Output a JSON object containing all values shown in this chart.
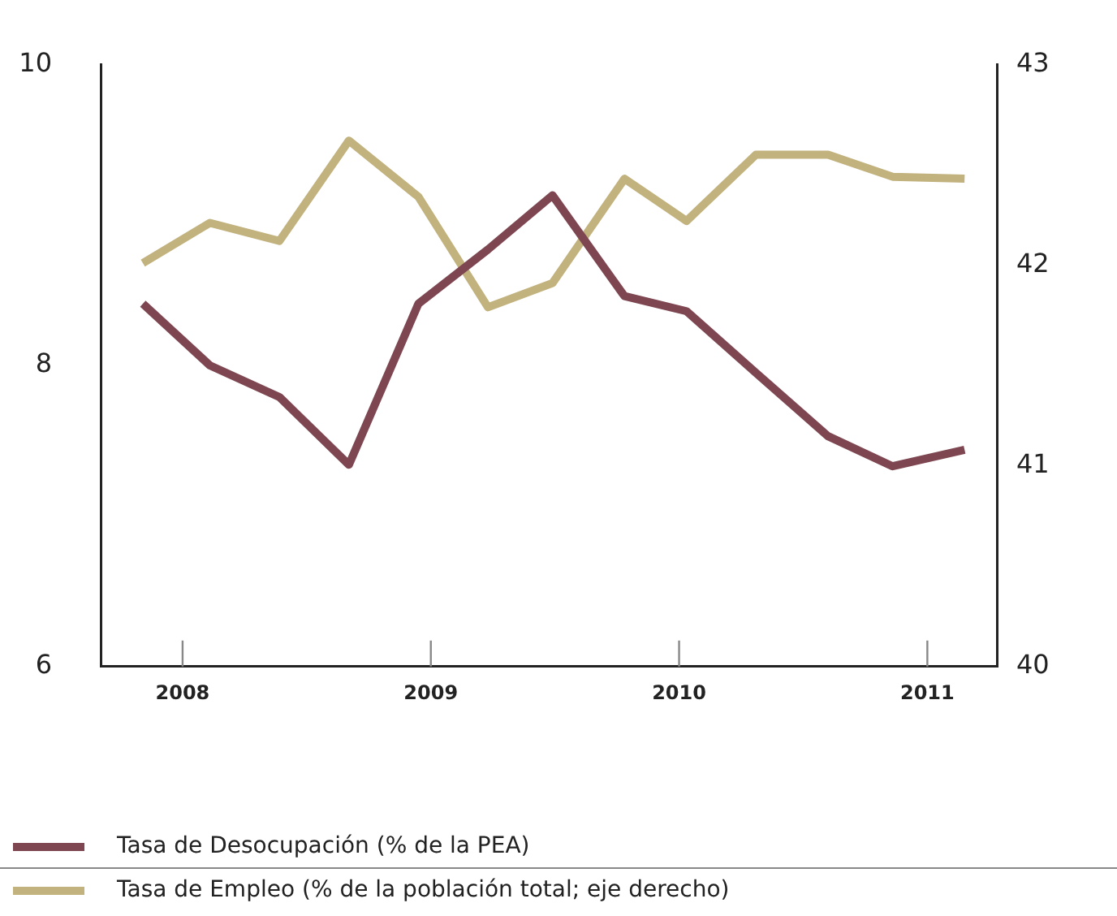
{
  "chart_data": {
    "type": "line",
    "x": [
      2007.84,
      2008.11,
      2008.39,
      2008.67,
      2008.95,
      2009.23,
      2009.49,
      2009.78,
      2010.03,
      2010.31,
      2010.6,
      2010.86,
      2011.15
    ],
    "series": [
      {
        "name": "Tasa de Desocupación (% de la PEA)",
        "color": "#7d4651",
        "values": [
          8.41,
          8.0,
          7.79,
          7.34,
          8.41,
          8.77,
          9.13,
          8.46,
          8.36,
          7.95,
          7.53,
          7.33,
          7.44
        ]
      },
      {
        "name": "Tasa de Empleo (% de la población total; eje derecho)",
        "color": "#c2b27e",
        "axis": "y2",
        "values": [
          42.01,
          42.21,
          42.12,
          42.62,
          42.34,
          41.79,
          41.91,
          42.43,
          42.22,
          42.55,
          42.55,
          42.44,
          42.43
        ]
      }
    ],
    "xlim": [
      2007.67,
      2011.28
    ],
    "xticks": [
      2008,
      2009,
      2010,
      2011
    ],
    "ylim": [
      6,
      10
    ],
    "yticks": [
      6,
      8,
      10
    ],
    "y2lim": [
      40,
      43
    ],
    "y2ticks": [
      40,
      41,
      42,
      43
    ],
    "grid": false,
    "legend": "bottom",
    "marker": "none",
    "line_style": "solid"
  }
}
